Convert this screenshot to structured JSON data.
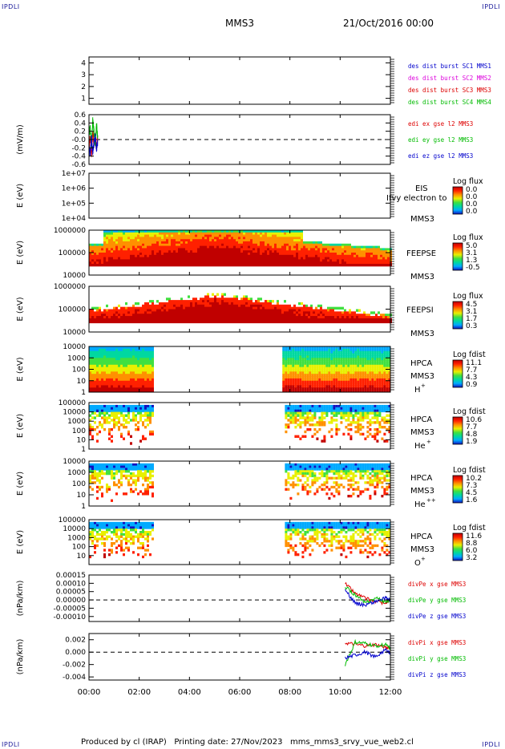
{
  "header": {
    "corner_label": "IPDLI",
    "satellite": "MMS3",
    "datetime": "21/Oct/2016 00:00"
  },
  "footer": {
    "text": "Produced by cl (IRAP)   Printing date: 27/Nov/2023   mms_mms3_srvy_vue_web2.cl"
  },
  "x_axis": {
    "range_hours": [
      0,
      12
    ],
    "tick_hours": [
      0,
      2,
      4,
      6,
      8,
      10,
      12
    ],
    "tick_labels": [
      "00:00",
      "02:00",
      "04:00",
      "06:00",
      "08:00",
      "10:00",
      "12:00"
    ]
  },
  "colors": {
    "red": "#dd0000",
    "green": "#00bb00",
    "blue": "#0000cc",
    "magenta": "#dd00dd",
    "colorbar": [
      "#1010c0",
      "#00aaff",
      "#00d8a0",
      "#40e040",
      "#e8f000",
      "#ff9000",
      "#ff2000",
      "#c00000"
    ]
  },
  "chart_data": [
    {
      "type": "line",
      "id": "des-dist",
      "ylabel": "",
      "ylim": [
        0.5,
        4.5
      ],
      "ticks": [
        1,
        2,
        3,
        4
      ],
      "tick_labels": [
        "1",
        "2",
        "3",
        "4"
      ],
      "series": [
        {
          "name": "des dist burst SC1 MMS1",
          "color": "#0000cc",
          "x": [],
          "y": []
        },
        {
          "name": "des dist burst SC2 MMS2",
          "color": "#dd00dd",
          "x": [],
          "y": []
        },
        {
          "name": "des dist burst SC3 MMS3",
          "color": "#dd0000",
          "x": [],
          "y": []
        },
        {
          "name": "des dist burst SC4 MMS4",
          "color": "#00bb00",
          "x": [],
          "y": []
        }
      ]
    },
    {
      "type": "line",
      "id": "edi",
      "ylabel": "(mV/m)",
      "ylim": [
        -0.6,
        0.6
      ],
      "ticks": [
        0.6,
        0.4,
        0.2,
        0.0,
        -0.2,
        -0.4,
        -0.6
      ],
      "tick_labels": [
        "0.6",
        "0.4",
        "0.2",
        "-0.0",
        "-0.2",
        "-0.4",
        "-0.6"
      ],
      "zero_line": true,
      "series": [
        {
          "name": "edi ex gse l2 MMS3",
          "color": "#dd0000",
          "x": [
            0.0,
            0.05,
            0.1,
            0.15,
            0.2,
            0.25,
            0.3,
            0.35
          ],
          "y": [
            -0.3,
            0.1,
            -0.4,
            0.2,
            -0.1,
            0.0,
            -0.2,
            0.1
          ]
        },
        {
          "name": "edi ey gse l2 MMS3",
          "color": "#00bb00",
          "x": [
            0.0,
            0.05,
            0.1,
            0.15,
            0.2,
            0.25,
            0.3,
            0.35
          ],
          "y": [
            0.1,
            0.3,
            -0.2,
            0.45,
            0.2,
            -0.1,
            0.35,
            0.0
          ]
        },
        {
          "name": "edi ez gse l2 MMS3",
          "color": "#0000cc",
          "x": [
            0.0,
            0.05,
            0.1,
            0.15,
            0.2,
            0.25,
            0.3,
            0.35
          ],
          "y": [
            -0.2,
            -0.35,
            0.05,
            -0.3,
            -0.1,
            0.1,
            -0.25,
            -0.05
          ]
        }
      ]
    },
    {
      "type": "heatmap",
      "id": "eis",
      "ylabel": "E (eV)",
      "log": true,
      "ylim": [
        10000,
        10000000
      ],
      "ticks": [
        10000,
        100000,
        1000000,
        10000000
      ],
      "tick_labels": [
        "1e+04",
        "1e+05",
        "1e+06",
        "1e+07"
      ],
      "labels": [
        "EIS",
        "Ifvy electron to",
        "MMS3"
      ],
      "colorbar": {
        "title": "Log flux",
        "ticks": [
          "0.0",
          "0.0",
          "0.0",
          "0.0"
        ]
      },
      "data": []
    },
    {
      "type": "heatmap",
      "id": "feeps-e",
      "ylabel": "E (eV)",
      "log": true,
      "ylim": [
        10000,
        1000000
      ],
      "ticks": [
        10000,
        100000,
        1000000
      ],
      "tick_labels": [
        "10000",
        "100000",
        "1000000"
      ],
      "labels": [
        "FEEPSE",
        "MMS3"
      ],
      "colorbar": {
        "title": "Log flux",
        "ticks": [
          "5.0",
          "3.1",
          "1.3",
          "-0.5"
        ]
      },
      "time_range_hours": [
        0,
        12
      ]
    },
    {
      "type": "heatmap",
      "id": "feeps-i",
      "ylabel": "E (eV)",
      "log": true,
      "ylim": [
        10000,
        1000000
      ],
      "ticks": [
        10000,
        100000,
        1000000
      ],
      "tick_labels": [
        "10000",
        "100000",
        "1000000"
      ],
      "labels": [
        "FEEPSI",
        "MMS3"
      ],
      "colorbar": {
        "title": "Log flux",
        "ticks": [
          "4.5",
          "3.1",
          "1.7",
          "0.3"
        ]
      },
      "time_range_hours": [
        0,
        12
      ]
    },
    {
      "type": "heatmap",
      "id": "hpca-h",
      "ylabel": "E (eV)",
      "log": true,
      "ylim": [
        1,
        10000
      ],
      "ticks": [
        1,
        10,
        100,
        1000,
        10000
      ],
      "tick_labels": [
        "1",
        "10",
        "100",
        "1000",
        "10000"
      ],
      "labels": [
        "HPCA",
        "MMS3"
      ],
      "species": "H",
      "species_sup": "+",
      "colorbar": {
        "title": "Log fdist",
        "ticks": [
          "11.1",
          "7.7",
          "4.3",
          "0.9"
        ]
      },
      "intervals_hours": [
        [
          0.0,
          2.5
        ],
        [
          7.7,
          12.0
        ]
      ]
    },
    {
      "type": "heatmap",
      "id": "hpca-he1",
      "ylabel": "E (eV)",
      "log": true,
      "ylim": [
        1,
        100000
      ],
      "ticks": [
        1,
        10,
        100,
        1000,
        10000,
        100000
      ],
      "tick_labels": [
        "1",
        "10",
        "100",
        "1000",
        "10000",
        "100000"
      ],
      "labels": [
        "HPCA",
        "MMS3"
      ],
      "species": "He",
      "species_sup": "+",
      "colorbar": {
        "title": "Log fdist",
        "ticks": [
          "10.6",
          "7.7",
          "4.8",
          "1.9"
        ]
      },
      "intervals_hours": [
        [
          0.0,
          2.5
        ],
        [
          7.8,
          12.0
        ]
      ]
    },
    {
      "type": "heatmap",
      "id": "hpca-he2",
      "ylabel": "E (eV)",
      "log": true,
      "ylim": [
        1,
        10000
      ],
      "ticks": [
        1,
        10,
        100,
        1000,
        10000
      ],
      "tick_labels": [
        "1",
        "10",
        "100",
        "1000",
        "10000"
      ],
      "labels": [
        "HPCA",
        "MMS3"
      ],
      "species": "He",
      "species_sup": "++",
      "colorbar": {
        "title": "Log fdist",
        "ticks": [
          "10.2",
          "7.3",
          "4.5",
          "1.6"
        ]
      },
      "intervals_hours": [
        [
          0.0,
          2.5
        ],
        [
          7.8,
          12.0
        ]
      ]
    },
    {
      "type": "heatmap",
      "id": "hpca-o",
      "ylabel": "E (eV)",
      "log": true,
      "ylim": [
        1,
        100000
      ],
      "ticks": [
        10,
        100,
        1000,
        10000,
        100000
      ],
      "tick_labels": [
        "10",
        "100",
        "1000",
        "10000",
        "100000"
      ],
      "labels": [
        "HPCA",
        "MMS3"
      ],
      "species": "O",
      "species_sup": "+",
      "colorbar": {
        "title": "Log fdist",
        "ticks": [
          "11.6",
          "8.8",
          "6.0",
          "3.2"
        ]
      },
      "intervals_hours": [
        [
          0.0,
          2.5
        ],
        [
          7.8,
          12.0
        ]
      ]
    },
    {
      "type": "line",
      "id": "divpe",
      "ylabel": "(nPa/km)",
      "ylim": [
        -0.00013,
        0.00015
      ],
      "ticks": [
        0.00015,
        0.0001,
        5e-05,
        0.0,
        -5e-05,
        -0.0001
      ],
      "tick_labels": [
        "0.00015",
        "0.00010",
        "0.00005",
        "0.00000",
        "-0.00005",
        "-0.00010"
      ],
      "zero_line": true,
      "series": [
        {
          "name": "divPe x gse MMS3",
          "color": "#dd0000",
          "x": [
            10.2,
            10.6,
            11.0,
            11.4,
            11.8,
            12.0
          ],
          "y": [
            0.0001,
            4e-05,
            1e-05,
            -1e-05,
            -2e-05,
            0.0
          ]
        },
        {
          "name": "divPe y gse MMS3",
          "color": "#00bb00",
          "x": [
            10.2,
            10.6,
            11.0,
            11.4,
            11.8,
            12.0
          ],
          "y": [
            8e-05,
            3e-05,
            -2e-05,
            1e-05,
            -1e-05,
            0.0
          ]
        },
        {
          "name": "divPe z gse MMS3",
          "color": "#0000cc",
          "x": [
            10.2,
            10.6,
            11.0,
            11.4,
            11.8,
            12.0
          ],
          "y": [
            6e-05,
            -2e-05,
            -3e-05,
            -1e-05,
            1e-05,
            0.0
          ]
        }
      ]
    },
    {
      "type": "line",
      "id": "divpi",
      "ylabel": "(nPa/km)",
      "ylim": [
        -0.0045,
        0.003
      ],
      "ticks": [
        0.002,
        0.0,
        -0.002,
        -0.004
      ],
      "tick_labels": [
        "0.002",
        "0.000",
        "-0.002",
        "-0.004"
      ],
      "zero_line": true,
      "series": [
        {
          "name": "divPi x gse MMS3",
          "color": "#dd0000",
          "x": [
            10.2,
            10.6,
            11.0,
            11.4,
            11.8,
            12.0
          ],
          "y": [
            0.0015,
            0.0012,
            0.001,
            0.0012,
            0.0008,
            0.0006
          ]
        },
        {
          "name": "divPi y gse MMS3",
          "color": "#00bb00",
          "x": [
            10.2,
            10.6,
            11.0,
            11.4,
            11.8,
            12.0
          ],
          "y": [
            -0.002,
            0.0016,
            0.0014,
            0.001,
            0.0012,
            0.0005
          ]
        },
        {
          "name": "divPi z gse MMS3",
          "color": "#0000cc",
          "x": [
            10.2,
            10.6,
            11.0,
            11.4,
            11.8,
            12.0
          ],
          "y": [
            -0.001,
            -0.0005,
            0.0,
            -0.0008,
            0.0004,
            -0.0002
          ]
        }
      ]
    }
  ]
}
